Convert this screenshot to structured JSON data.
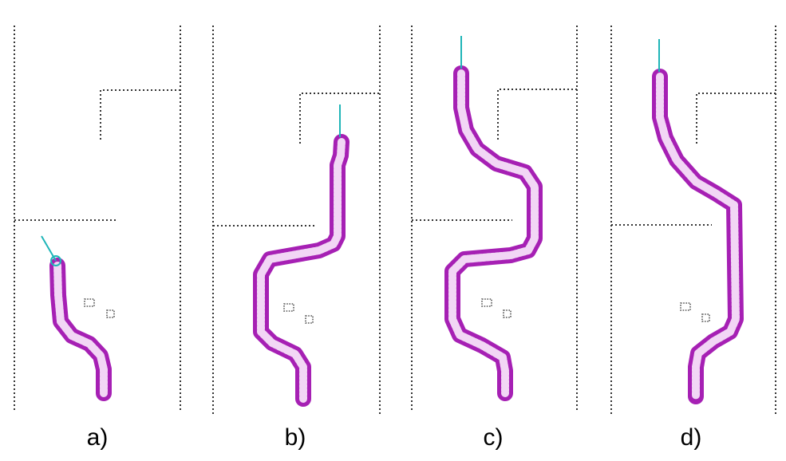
{
  "colors": {
    "trace": "#a620b4",
    "trace_inner": "#f2d6f5",
    "probe": "#1fb5b8",
    "wall": "#333333"
  },
  "panels": [
    {
      "id": "a",
      "label": "a)"
    },
    {
      "id": "b",
      "label": "b)"
    },
    {
      "id": "c",
      "label": "c)"
    },
    {
      "id": "d",
      "label": "d)"
    }
  ]
}
